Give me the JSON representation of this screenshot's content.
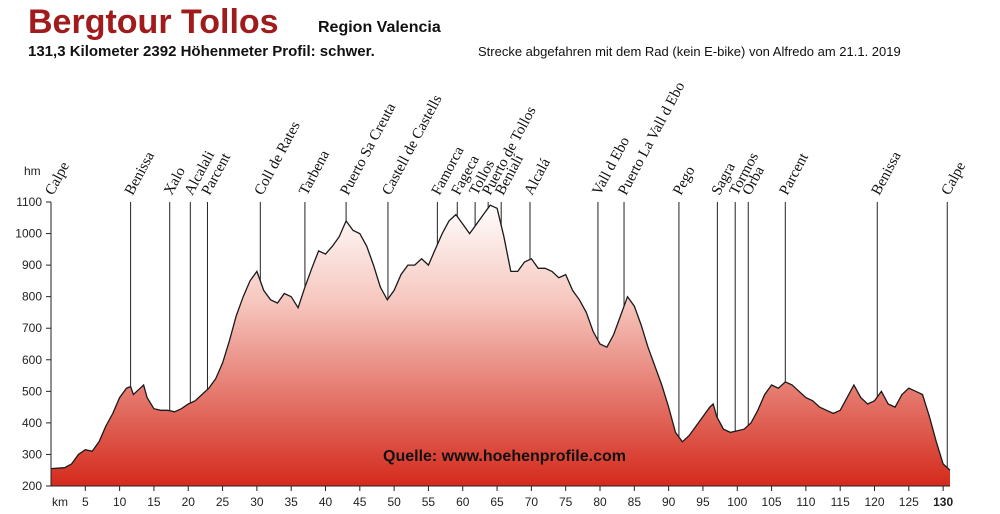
{
  "chart_data": {
    "type": "area",
    "title": "Bergtour Tollos",
    "subtitle": "Region Valencia",
    "stats": "131,3 Kilometer  2392 Höhenmeter  Profil: schwer.",
    "note": "Strecke abgefahren mit dem Rad (kein E-bike) von Alfredo am 21.1. 2019",
    "source": "Quelle: www.hoehenprofile.com",
    "x_label": "km",
    "y_label": "hm",
    "color": "#d42a1c",
    "x": [
      0,
      2,
      3,
      4,
      5,
      6,
      7,
      8,
      9,
      10,
      11,
      11.6,
      12,
      13,
      13.5,
      14,
      15,
      16,
      17,
      18,
      19,
      20,
      21,
      22,
      23,
      24,
      25,
      26,
      27,
      28,
      29,
      30,
      31,
      32,
      33,
      34,
      35,
      36,
      37,
      38,
      39,
      40,
      41,
      42,
      43,
      44,
      45,
      46,
      47,
      48,
      49,
      50,
      51,
      52,
      53,
      54,
      55,
      56,
      57,
      58,
      59,
      60,
      61,
      62,
      63,
      64,
      65,
      66,
      67,
      68,
      69,
      70,
      71,
      72,
      73,
      74,
      75,
      76,
      77,
      78,
      79,
      80,
      81,
      82,
      83,
      84,
      85,
      86,
      87,
      88,
      89,
      90,
      91,
      92,
      93,
      94,
      95,
      96,
      96.5,
      97,
      98,
      99,
      100,
      101,
      102,
      103,
      104,
      105,
      106,
      107,
      108,
      109,
      110,
      111,
      112,
      113,
      114,
      115,
      116,
      117,
      118,
      119,
      120,
      121,
      122,
      123,
      124,
      125,
      126,
      127,
      128,
      129,
      130,
      131
    ],
    "values": [
      255,
      258,
      270,
      300,
      315,
      310,
      340,
      390,
      430,
      480,
      510,
      515,
      490,
      510,
      520,
      480,
      445,
      440,
      440,
      435,
      445,
      460,
      470,
      490,
      510,
      540,
      590,
      660,
      740,
      800,
      850,
      880,
      820,
      790,
      780,
      810,
      800,
      765,
      830,
      890,
      945,
      935,
      960,
      990,
      1040,
      1010,
      1000,
      960,
      900,
      830,
      790,
      820,
      870,
      900,
      900,
      920,
      900,
      950,
      1000,
      1040,
      1060,
      1030,
      1000,
      1030,
      1060,
      1090,
      1080,
      990,
      880,
      880,
      910,
      920,
      890,
      890,
      880,
      860,
      870,
      820,
      790,
      750,
      690,
      650,
      640,
      680,
      740,
      800,
      770,
      710,
      640,
      580,
      520,
      450,
      370,
      340,
      360,
      390,
      420,
      450,
      460,
      420,
      380,
      370,
      375,
      380,
      400,
      440,
      490,
      520,
      510,
      530,
      520,
      500,
      480,
      470,
      450,
      440,
      430,
      440,
      480,
      520,
      480,
      460,
      470,
      500,
      460,
      450,
      490,
      510,
      500,
      490,
      420,
      340,
      270,
      250
    ],
    "xlim": [
      0,
      131
    ],
    "ylim": [
      200,
      1100
    ],
    "xticks": [
      5,
      10,
      15,
      20,
      25,
      30,
      35,
      40,
      45,
      50,
      55,
      60,
      65,
      70,
      75,
      80,
      85,
      90,
      95,
      100,
      105,
      110,
      115,
      120,
      125,
      130
    ],
    "yticks": [
      200,
      300,
      400,
      500,
      600,
      700,
      800,
      900,
      1000,
      1100
    ],
    "waypoints": [
      {
        "label": "Calpe",
        "km": 0
      },
      {
        "label": "Benissa",
        "km": 11.6
      },
      {
        "label": "Xalo",
        "km": 17.3
      },
      {
        "label": "Alcalali",
        "km": 20.3
      },
      {
        "label": "Parcent",
        "km": 22.8
      },
      {
        "label": "Coll de Rates",
        "km": 30.5
      },
      {
        "label": "Tarbena",
        "km": 37
      },
      {
        "label": "Puerto Sa Creuta",
        "km": 43
      },
      {
        "label": "Castell de Castells",
        "km": 49.1
      },
      {
        "label": "Famorca",
        "km": 56.3
      },
      {
        "label": "Fageca",
        "km": 59.2
      },
      {
        "label": "Tollos",
        "km": 61.8
      },
      {
        "label": "Puerto de Tollos",
        "km": 63.7
      },
      {
        "label": "Benialí",
        "km": 65.6
      },
      {
        "label": "Alcalá",
        "km": 69.8
      },
      {
        "label": "Vall d Ebo",
        "km": 79.7
      },
      {
        "label": "Puerto La Vall d Ebo",
        "km": 83.5
      },
      {
        "label": "Pego",
        "km": 91.5
      },
      {
        "label": "Sagra",
        "km": 97.1
      },
      {
        "label": "Tormos",
        "km": 99.7
      },
      {
        "label": "Orba",
        "km": 101.6
      },
      {
        "label": "Parcent",
        "km": 107
      },
      {
        "label": "Benissa",
        "km": 120.4
      },
      {
        "label": "Calpe",
        "km": 130.6
      }
    ]
  }
}
